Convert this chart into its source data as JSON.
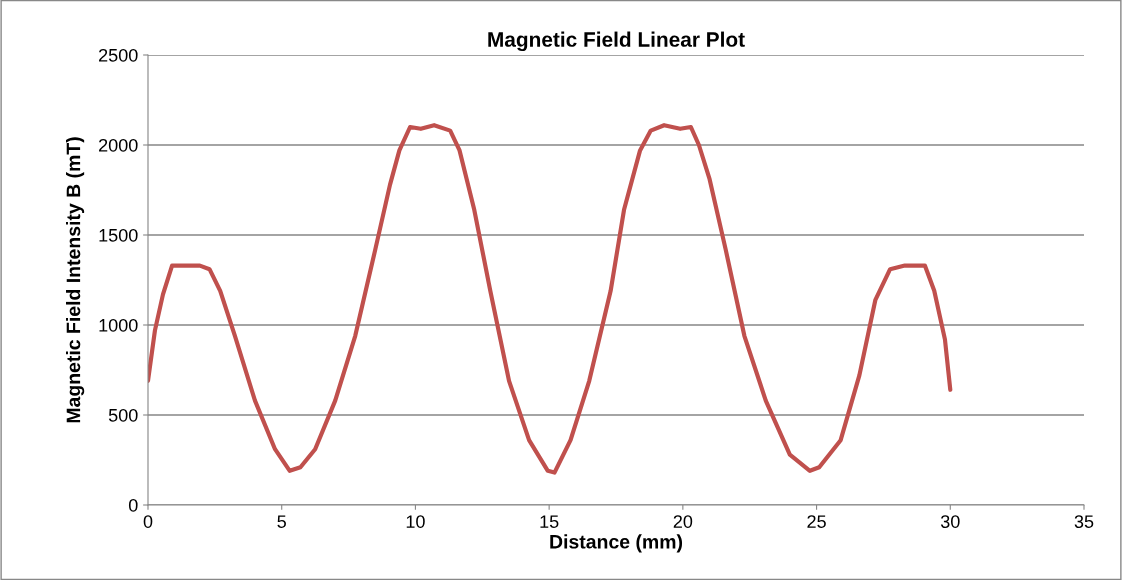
{
  "chart_data": {
    "type": "line",
    "title": "Magnetic Field Linear Plot",
    "xlabel": "Distance (mm)",
    "ylabel": "Magnetic Field Intensity B (mT)",
    "x": [
      0,
      0.26,
      0.56,
      0.9,
      1.2,
      1.94,
      2.3,
      2.7,
      3.25,
      4.0,
      4.75,
      5.3,
      5.7,
      6.25,
      7.0,
      7.75,
      8.5,
      9.05,
      9.4,
      9.8,
      10.2,
      10.7,
      11.3,
      11.65,
      12.2,
      12.8,
      13.5,
      14.25,
      14.95,
      15.2,
      15.8,
      16.5,
      17.3,
      17.8,
      18.4,
      18.8,
      19.3,
      19.9,
      20.3,
      20.6,
      21.0,
      21.6,
      22.3,
      23.1,
      24.0,
      24.75,
      25.1,
      25.9,
      26.6,
      27.2,
      27.75,
      28.3,
      29.05,
      29.4,
      29.8,
      30.0
    ],
    "series": [
      {
        "color": "#c0504d",
        "values": [
          690,
          970,
          1170,
          1330,
          1330,
          1330,
          1310,
          1190,
          940,
          580,
          310,
          190,
          210,
          310,
          580,
          940,
          1420,
          1780,
          1970,
          2100,
          2090,
          2110,
          2080,
          1970,
          1640,
          1190,
          690,
          360,
          190,
          180,
          360,
          690,
          1190,
          1640,
          1970,
          2080,
          2110,
          2090,
          2100,
          2000,
          1810,
          1420,
          940,
          580,
          280,
          190,
          210,
          360,
          720,
          1140,
          1310,
          1330,
          1330,
          1190,
          920,
          640
        ]
      }
    ],
    "xlim": [
      0,
      35
    ],
    "xticks": [
      0,
      5,
      10,
      15,
      20,
      25,
      30,
      35
    ],
    "ylim": [
      0,
      2500
    ],
    "yticks": [
      0,
      500,
      1000,
      1500,
      2000,
      2500
    ],
    "grid": "y",
    "marker": "none",
    "line_style": "solid"
  }
}
